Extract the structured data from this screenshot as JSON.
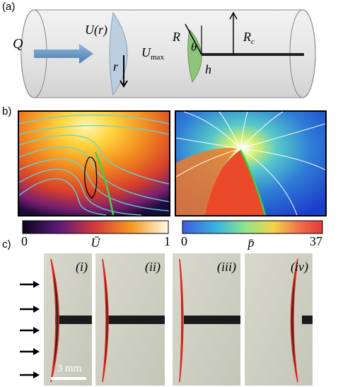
{
  "panel_a": {
    "label": "(a)",
    "flow": "Q",
    "profile": "U(r)",
    "max_velocity": {
      "text": "U",
      "sub": "max"
    },
    "radius": "r",
    "cap_radius": "R",
    "angle": "θ",
    "thickness": "h",
    "tube_radius": {
      "text": "R",
      "sub": "c"
    }
  },
  "panel_b": {
    "label": "b)",
    "colorbars": [
      {
        "min": 0,
        "max": 1,
        "label": "Ū"
      },
      {
        "min": 0,
        "max": 37,
        "label": "p̄"
      }
    ]
  },
  "panel_c": {
    "label": "c)",
    "frames": [
      "(i)",
      "(ii)",
      "(iii)",
      "(iv)"
    ],
    "scale_bar": "3 mm"
  }
}
